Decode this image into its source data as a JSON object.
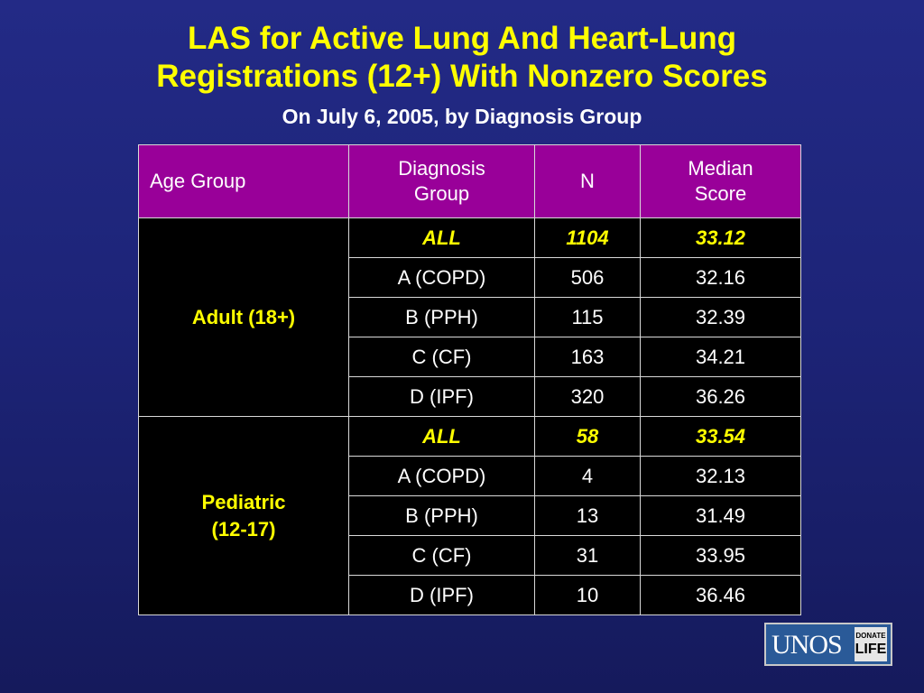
{
  "slide": {
    "title_line1": "LAS for Active Lung And Heart-Lung",
    "title_line2": "Registrations (12+) With Nonzero Scores",
    "subtitle": "On July 6, 2005, by Diagnosis Group"
  },
  "table": {
    "headers": {
      "age_group": "Age Group",
      "diagnosis_l1": "Diagnosis",
      "diagnosis_l2": "Group",
      "n": "N",
      "median_l1": "Median",
      "median_l2": "Score"
    },
    "groups": [
      {
        "label_l1": "Adult (18+)",
        "label_l2": "",
        "rows": [
          {
            "diagnosis": "ALL",
            "n": "1104",
            "median": "33.12",
            "highlight": true
          },
          {
            "diagnosis": "A (COPD)",
            "n": "506",
            "median": "32.16",
            "highlight": false
          },
          {
            "diagnosis": "B (PPH)",
            "n": "115",
            "median": "32.39",
            "highlight": false
          },
          {
            "diagnosis": "C (CF)",
            "n": "163",
            "median": "34.21",
            "highlight": false
          },
          {
            "diagnosis": "D (IPF)",
            "n": "320",
            "median": "36.26",
            "highlight": false
          }
        ]
      },
      {
        "label_l1": "Pediatric",
        "label_l2": "(12-17)",
        "rows": [
          {
            "diagnosis": "ALL",
            "n": "58",
            "median": "33.54",
            "highlight": true
          },
          {
            "diagnosis": "A (COPD)",
            "n": "4",
            "median": "32.13",
            "highlight": false
          },
          {
            "diagnosis": "B (PPH)",
            "n": "13",
            "median": "31.49",
            "highlight": false
          },
          {
            "diagnosis": "C (CF)",
            "n": "31",
            "median": "33.95",
            "highlight": false
          },
          {
            "diagnosis": "D (IPF)",
            "n": "10",
            "median": "36.46",
            "highlight": false
          }
        ]
      }
    ]
  },
  "logo": {
    "name": "UNOS",
    "badge_line1": "DONATE",
    "badge_line2": "LIFE"
  },
  "colors": {
    "background": "#1f2680",
    "title": "#ffff00",
    "header_bg": "#990099",
    "cell_bg": "#000000",
    "highlight_text": "#ffff00"
  }
}
